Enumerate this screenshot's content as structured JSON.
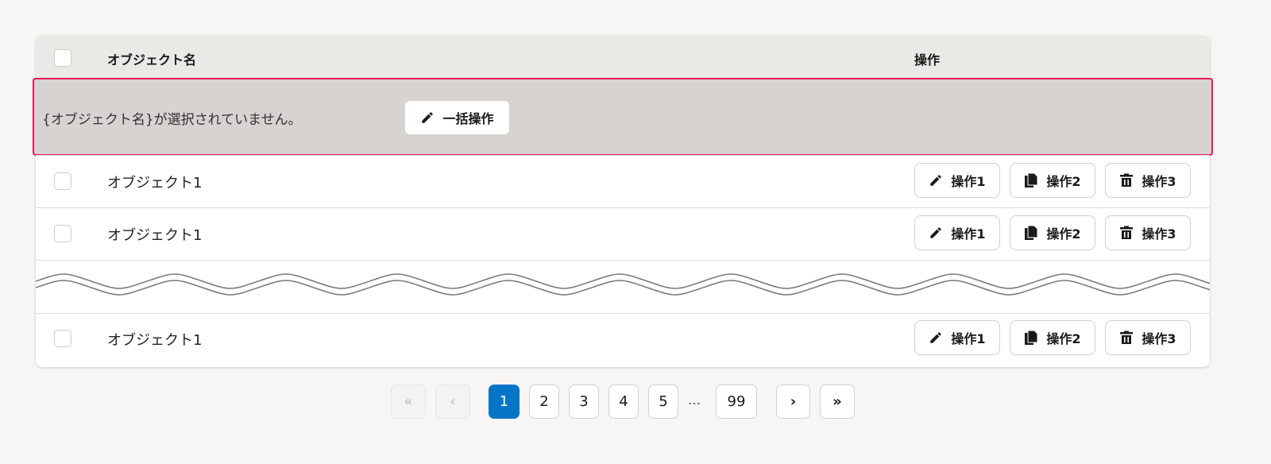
{
  "table": {
    "header": {
      "name_col": "オブジェクト名",
      "actions_col": "操作"
    },
    "bulk_bar": {
      "message": "{オブジェクト名}が選択されていません。",
      "bulk_button": "一括操作",
      "bulk_icon": "pencil-icon",
      "highlight_color": "#e6175c"
    },
    "rows": [
      {
        "name": "オブジェクト1",
        "checked": false
      },
      {
        "name": "オブジェクト1",
        "checked": false
      },
      {
        "name": "オブジェクト1",
        "checked": false
      }
    ],
    "row_actions": [
      {
        "label": "操作1",
        "icon": "pencil-icon"
      },
      {
        "label": "操作2",
        "icon": "copy-icon"
      },
      {
        "label": "操作3",
        "icon": "trash-icon"
      }
    ]
  },
  "pagination": {
    "first": "«",
    "prev": "‹",
    "next": "›",
    "last": "»",
    "pages": [
      "1",
      "2",
      "3",
      "4",
      "5"
    ],
    "ellipsis": "…",
    "last_page": "99",
    "current": "1",
    "accent": "#0575c8"
  }
}
